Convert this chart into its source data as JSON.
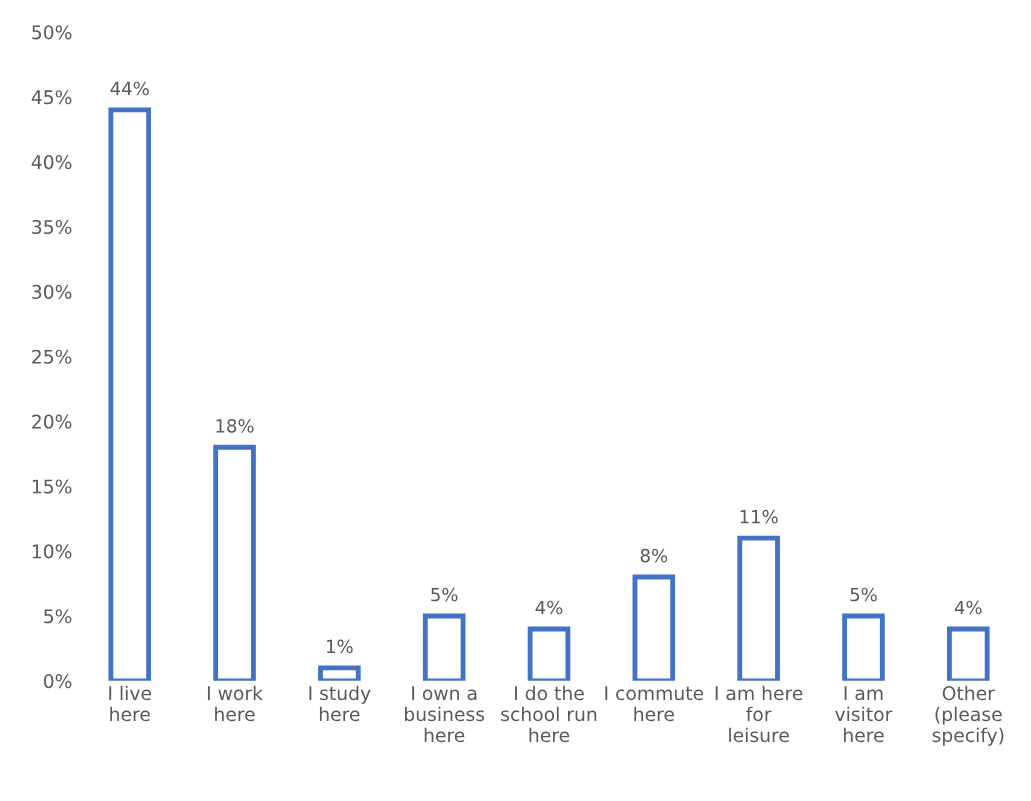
{
  "chart_data": {
    "type": "bar",
    "categories": [
      "I live here",
      "I work here",
      "I study here",
      "I own a business here",
      "I do the school run here",
      "I commute here",
      "I am here for leisure",
      "I am visitor here",
      "Other (please specify)"
    ],
    "values": [
      44,
      18,
      1,
      5,
      4,
      8,
      11,
      5,
      4
    ],
    "value_labels": [
      "44%",
      "18%",
      "1%",
      "5%",
      "4%",
      "8%",
      "11%",
      "5%",
      "4%"
    ],
    "color": "#4472c4",
    "ylim": [
      0,
      50
    ],
    "yticks": [
      {
        "value": 0,
        "label": "0%"
      },
      {
        "value": 5,
        "label": "5%"
      },
      {
        "value": 10,
        "label": "10%"
      },
      {
        "value": 15,
        "label": "15%"
      },
      {
        "value": 20,
        "label": "20%"
      },
      {
        "value": 25,
        "label": "25%"
      },
      {
        "value": 30,
        "label": "30%"
      },
      {
        "value": 35,
        "label": "35%"
      },
      {
        "value": 40,
        "label": "40%"
      },
      {
        "value": 45,
        "label": "45%"
      },
      {
        "value": 50,
        "label": "50%"
      }
    ],
    "grid": false,
    "legend": false
  }
}
